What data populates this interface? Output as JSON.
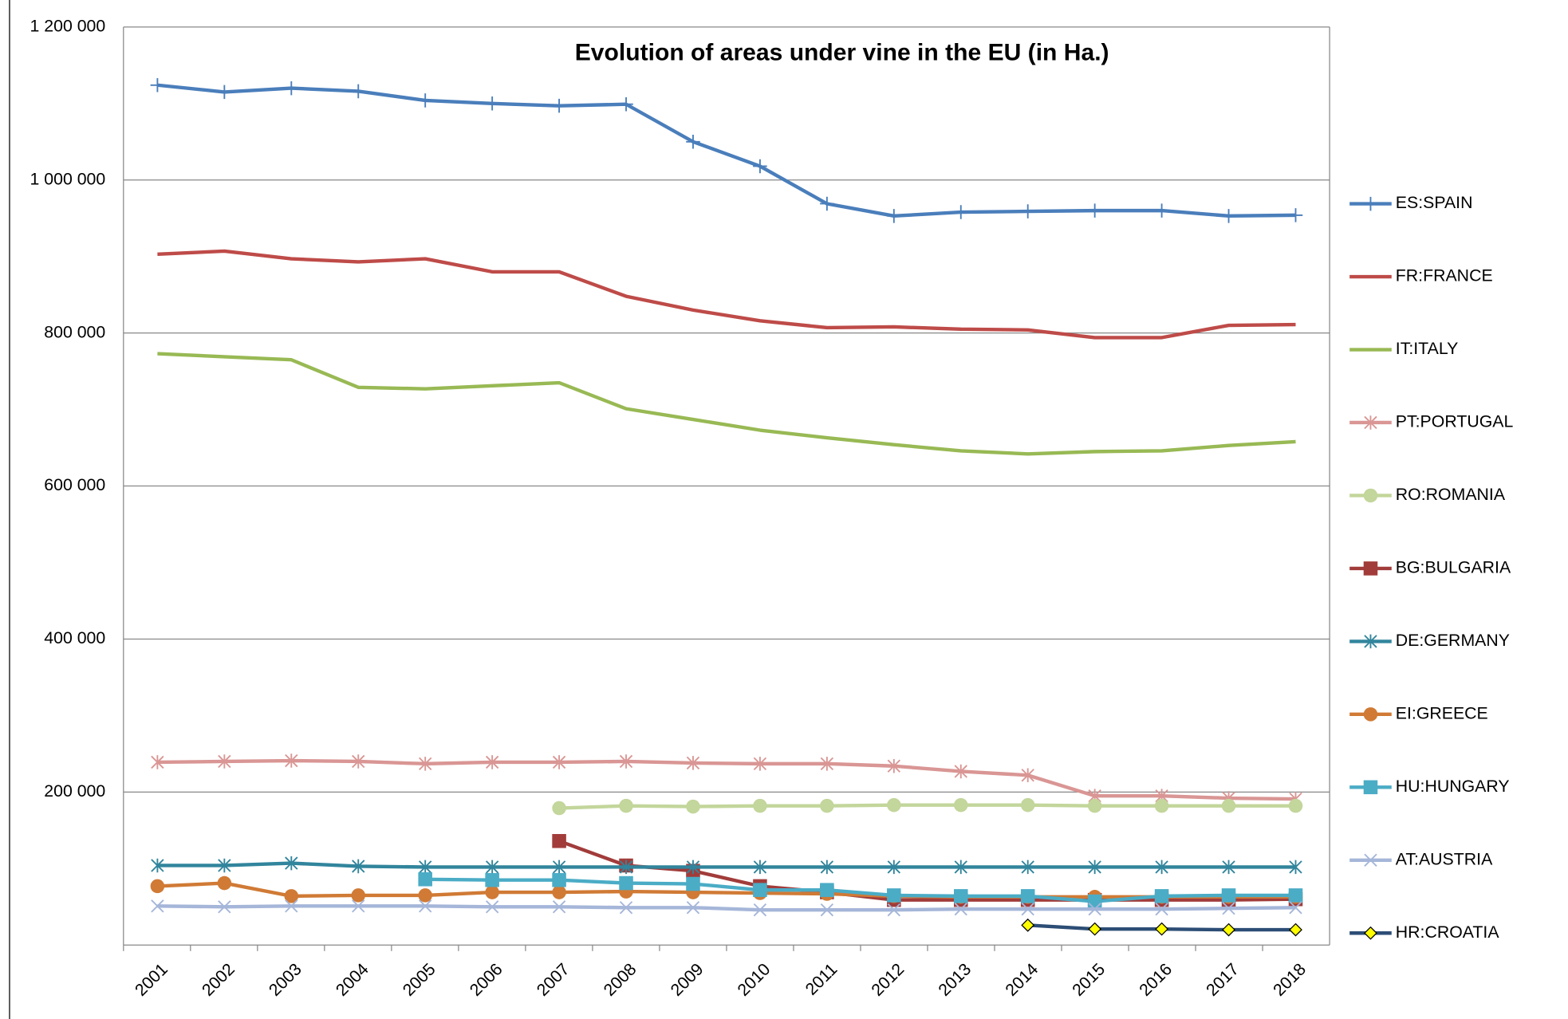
{
  "chart_data": {
    "type": "line",
    "title": "Evolution of areas under vine in the EU (in Ha.)",
    "categories": [
      "2001",
      "2002",
      "2003",
      "2004",
      "2005",
      "2006",
      "2007",
      "2008",
      "2009",
      "2010",
      "2011",
      "2012",
      "2013",
      "2014",
      "2015",
      "2016",
      "2017",
      "2018"
    ],
    "ylim": [
      0,
      1200000
    ],
    "yticks": [
      {
        "value": 200000,
        "label": "200 000"
      },
      {
        "value": 400000,
        "label": "400 000"
      },
      {
        "value": 600000,
        "label": "600 000"
      },
      {
        "value": 800000,
        "label": "800 000"
      },
      {
        "value": 1000000,
        "label": "1 000 000"
      },
      {
        "value": 1200000,
        "label": "1 200 000"
      }
    ],
    "grid": true,
    "legend": "right",
    "series": [
      {
        "name": "ES:SPAIN",
        "color": "#4a7ebb",
        "marker": "plus",
        "values": [
          1124000,
          1115000,
          1120000,
          1116000,
          1104000,
          1100000,
          1097000,
          1099000,
          1050000,
          1018000,
          969000,
          953000,
          958000,
          959000,
          960000,
          960000,
          953000,
          954000
        ]
      },
      {
        "name": "FR:FRANCE",
        "color": "#be4b48",
        "marker": "none",
        "values": [
          903000,
          907000,
          897000,
          893000,
          897000,
          880000,
          880000,
          848000,
          830000,
          816000,
          807000,
          808000,
          805000,
          804000,
          794000,
          794000,
          810000,
          811000
        ]
      },
      {
        "name": "IT:ITALY",
        "color": "#98b954",
        "marker": "none",
        "values": [
          773000,
          769000,
          765000,
          729000,
          727000,
          731000,
          735000,
          701000,
          687000,
          673000,
          663000,
          654000,
          646000,
          642000,
          645000,
          646000,
          653000,
          658000
        ]
      },
      {
        "name": "PT:PORTUGAL",
        "color": "#d99694",
        "marker": "asterisk",
        "values": [
          239000,
          240000,
          241000,
          240000,
          237000,
          239000,
          239000,
          240000,
          238000,
          237000,
          237000,
          234000,
          227000,
          222000,
          195000,
          195000,
          192000,
          191000
        ]
      },
      {
        "name": "RO:ROMANIA",
        "color": "#c3d69b",
        "marker": "circle",
        "values": [
          null,
          null,
          null,
          null,
          null,
          null,
          179000,
          182000,
          181000,
          182000,
          182000,
          183000,
          183000,
          183000,
          182000,
          182000,
          182000,
          182000
        ]
      },
      {
        "name": "BG:BULGARIA",
        "color": "#a13c3a",
        "marker": "square",
        "values": [
          null,
          null,
          null,
          null,
          null,
          null,
          136000,
          104000,
          97000,
          77000,
          69000,
          59000,
          59000,
          59000,
          59000,
          59000,
          59000,
          60000
        ]
      },
      {
        "name": "DE:GERMANY",
        "color": "#31859c",
        "marker": "asterisk",
        "values": [
          104000,
          104000,
          107000,
          103000,
          102000,
          102000,
          102000,
          102000,
          102000,
          102000,
          102000,
          102000,
          102000,
          102000,
          102000,
          102000,
          102000,
          102000
        ]
      },
      {
        "name": "EI:GREECE",
        "color": "#d07a35",
        "marker": "circle",
        "values": [
          77000,
          81000,
          64000,
          65000,
          65000,
          69000,
          69000,
          70000,
          69000,
          68000,
          67000,
          64000,
          63000,
          63000,
          63000,
          63000,
          63000,
          63000
        ]
      },
      {
        "name": "HU:HUNGARY",
        "color": "#4bacc6",
        "marker": "square",
        "values": [
          null,
          null,
          null,
          null,
          86000,
          85000,
          85000,
          81000,
          80000,
          72000,
          72000,
          65000,
          64000,
          64000,
          57000,
          64000,
          65000,
          65000
        ]
      },
      {
        "name": "AT:AUSTRIA",
        "color": "#a5b6d9",
        "marker": "x",
        "values": [
          51000,
          50000,
          51000,
          51000,
          51000,
          50000,
          50000,
          49000,
          49000,
          46000,
          46000,
          46000,
          47000,
          47000,
          47000,
          47000,
          48000,
          49000
        ]
      },
      {
        "name": "HR:CROATIA",
        "color": "#2c4d75",
        "marker": "diamond",
        "values": [
          null,
          null,
          null,
          null,
          null,
          null,
          null,
          null,
          null,
          null,
          null,
          null,
          null,
          26000,
          21000,
          21000,
          20000,
          20000
        ]
      }
    ]
  }
}
